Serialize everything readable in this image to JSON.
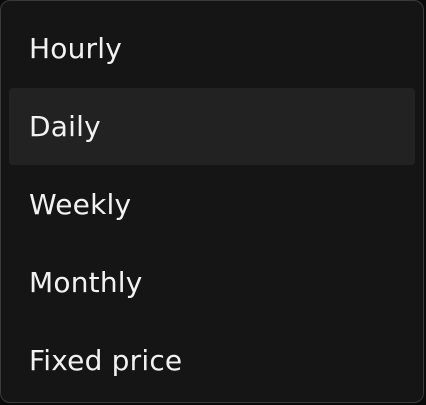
{
  "menu": {
    "items": [
      {
        "label": "Hourly"
      },
      {
        "label": "Daily",
        "highlighted": true
      },
      {
        "label": "Weekly"
      },
      {
        "label": "Monthly"
      },
      {
        "label": "Fixed price"
      }
    ],
    "colors": {
      "background": "#151515",
      "highlight": "#222222",
      "border": "#3a3a3a",
      "text": "#f2f2f2"
    }
  }
}
